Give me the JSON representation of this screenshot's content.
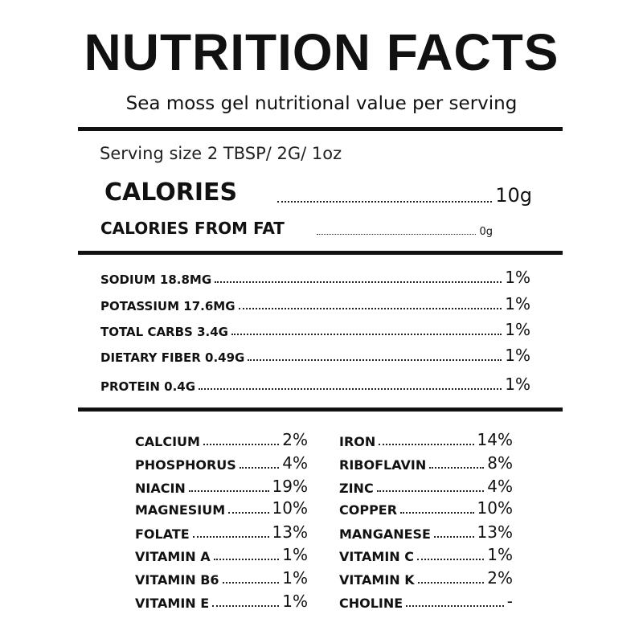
{
  "title": "NUTRITION FACTS",
  "subtitle": "Sea moss gel nutritional value per serving",
  "serving_size": "Serving size 2 TBSP/ 2G/ 1oz",
  "calories": {
    "label": "CALORIES",
    "value": "10g"
  },
  "calories_from_fat": {
    "label": "CALORIES FROM FAT",
    "value": "0g"
  },
  "nutrients": [
    {
      "label": "SODIUM 18.8MG",
      "value": "1%"
    },
    {
      "label": "POTASSIUM 17.6MG",
      "value": "1%"
    },
    {
      "label": "TOTAL CARBS 3.4G",
      "value": "1%"
    },
    {
      "label": "DIETARY FIBER 0.49G",
      "value": "1%"
    },
    {
      "label": "PROTEIN 0.4G",
      "value": "1%"
    }
  ],
  "vitamins_left": [
    {
      "label": "CALCIUM",
      "value": "2%"
    },
    {
      "label": "PHOSPHORUS",
      "value": "4%"
    },
    {
      "label": "NIACIN",
      "value": "19%"
    },
    {
      "label": "MAGNESIUM",
      "value": "10%"
    },
    {
      "label": "FOLATE",
      "value": "13%"
    },
    {
      "label": "VITAMIN A",
      "value": "1%"
    },
    {
      "label": "VITAMIN B6",
      "value": "1%"
    },
    {
      "label": "VITAMIN E",
      "value": "1%"
    }
  ],
  "vitamins_right": [
    {
      "label": "IRON",
      "value": "14%"
    },
    {
      "label": "RIBOFLAVIN",
      "value": "8%"
    },
    {
      "label": "ZINC",
      "value": "4%"
    },
    {
      "label": "COPPER",
      "value": "10%"
    },
    {
      "label": "MANGANESE",
      "value": "13%"
    },
    {
      "label": "VITAMIN C",
      "value": "1%"
    },
    {
      "label": "VITAMIN K",
      "value": "2%"
    },
    {
      "label": "CHOLINE",
      "value": "-"
    }
  ]
}
